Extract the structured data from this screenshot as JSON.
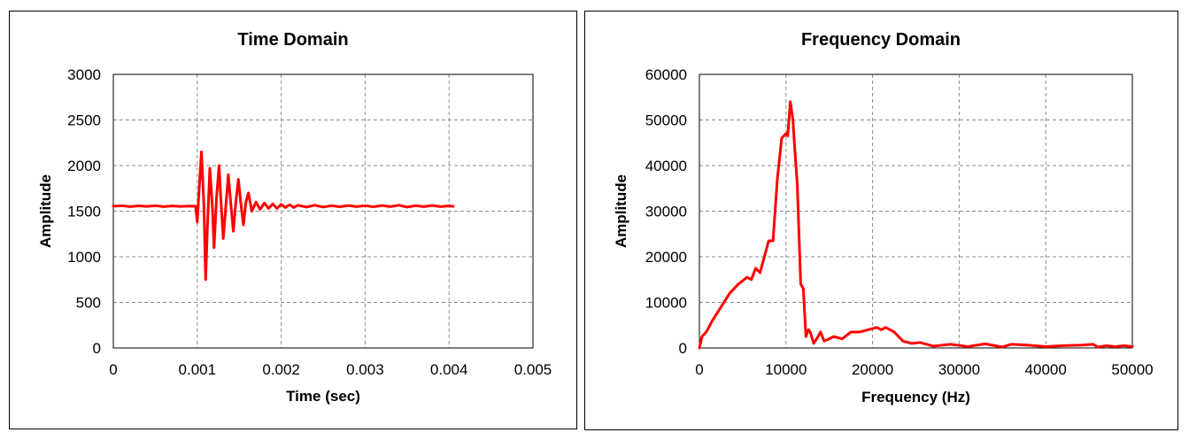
{
  "chart_data": [
    {
      "type": "line",
      "title": "Time Domain",
      "xlabel": "Time (sec)",
      "ylabel": "Amplitude",
      "xlim": [
        0,
        0.005
      ],
      "ylim": [
        0,
        3000
      ],
      "xticks": [
        0,
        0.001,
        0.002,
        0.003,
        0.004,
        0.005
      ],
      "xtick_labels": [
        "0",
        "0.001",
        "0.002",
        "0.003",
        "0.004",
        "0.005"
      ],
      "yticks": [
        0,
        500,
        1000,
        1500,
        2000,
        2500,
        3000
      ],
      "ytick_labels": [
        "0",
        "500",
        "1000",
        "1500",
        "2000",
        "2500",
        "3000"
      ],
      "grid": true,
      "line_color": "#ff0000",
      "series": [
        {
          "x": [
            0,
            0.0001,
            0.0002,
            0.0003,
            0.0004,
            0.0005,
            0.0006,
            0.0007,
            0.0008,
            0.0009,
            0.00098,
            0.001,
            0.00102,
            0.00105,
            0.00108,
            0.0011,
            0.00112,
            0.00115,
            0.00118,
            0.0012,
            0.00123,
            0.00126,
            0.00128,
            0.00131,
            0.00134,
            0.00137,
            0.0014,
            0.00143,
            0.00146,
            0.00149,
            0.00152,
            0.00155,
            0.00158,
            0.00161,
            0.00165,
            0.0017,
            0.00175,
            0.0018,
            0.00185,
            0.0019,
            0.00195,
            0.002,
            0.00205,
            0.0021,
            0.00215,
            0.0022,
            0.0023,
            0.0024,
            0.0025,
            0.0026,
            0.0027,
            0.0028,
            0.0029,
            0.003,
            0.0031,
            0.0032,
            0.0033,
            0.0034,
            0.0035,
            0.0036,
            0.0037,
            0.0038,
            0.0039,
            0.004,
            0.00405
          ],
          "y": [
            1555,
            1560,
            1550,
            1558,
            1552,
            1560,
            1550,
            1557,
            1552,
            1556,
            1555,
            1380,
            1700,
            2150,
            1550,
            750,
            1300,
            1970,
            1550,
            1100,
            1650,
            2000,
            1650,
            1200,
            1550,
            1900,
            1580,
            1280,
            1600,
            1850,
            1580,
            1350,
            1600,
            1700,
            1500,
            1600,
            1520,
            1590,
            1530,
            1580,
            1530,
            1575,
            1540,
            1570,
            1540,
            1565,
            1545,
            1565,
            1545,
            1560,
            1548,
            1562,
            1550,
            1560,
            1548,
            1562,
            1550,
            1565,
            1545,
            1560,
            1550,
            1562,
            1550,
            1558,
            1552
          ]
        }
      ]
    },
    {
      "type": "line",
      "title": "Frequency Domain",
      "xlabel": "Frequency (Hz)",
      "ylabel": "Amplitude",
      "xlim": [
        0,
        50000
      ],
      "ylim": [
        0,
        60000
      ],
      "xticks": [
        0,
        10000,
        20000,
        30000,
        40000,
        50000
      ],
      "xtick_labels": [
        "0",
        "10000",
        "20000",
        "30000",
        "40000",
        "50000"
      ],
      "yticks": [
        0,
        10000,
        20000,
        30000,
        40000,
        50000,
        60000
      ],
      "ytick_labels": [
        "0",
        "10000",
        "20000",
        "30000",
        "40000",
        "50000",
        "60000"
      ],
      "grid": true,
      "line_color": "#ff0000",
      "series": [
        {
          "x": [
            0,
            300,
            800,
            1500,
            2500,
            3500,
            4500,
            5500,
            6000,
            6500,
            7000,
            7500,
            8000,
            8500,
            9000,
            9500,
            10000,
            10200,
            10500,
            10800,
            11000,
            11300,
            11700,
            12000,
            12300,
            12600,
            12800,
            13200,
            13700,
            14000,
            14400,
            15000,
            15500,
            16500,
            17500,
            18500,
            19500,
            20500,
            21000,
            21500,
            22500,
            23500,
            24500,
            25500,
            27000,
            29000,
            31000,
            33000,
            35000,
            36000,
            38000,
            40000,
            42000,
            44000,
            45500,
            46000,
            47000,
            48000,
            49000,
            50000
          ],
          "y": [
            0,
            2500,
            3500,
            6000,
            9000,
            12000,
            14000,
            15500,
            15000,
            17500,
            16500,
            20000,
            23500,
            23500,
            37000,
            46000,
            47000,
            46500,
            54000,
            50000,
            44000,
            36000,
            14000,
            13000,
            2500,
            4000,
            3500,
            1000,
            2500,
            3500,
            1500,
            2000,
            2500,
            2000,
            3500,
            3500,
            4000,
            4500,
            4000,
            4500,
            3500,
            1500,
            1000,
            1200,
            400,
            800,
            300,
            900,
            200,
            800,
            600,
            300,
            500,
            600,
            800,
            200,
            500,
            300,
            500,
            300
          ]
        }
      ]
    }
  ]
}
